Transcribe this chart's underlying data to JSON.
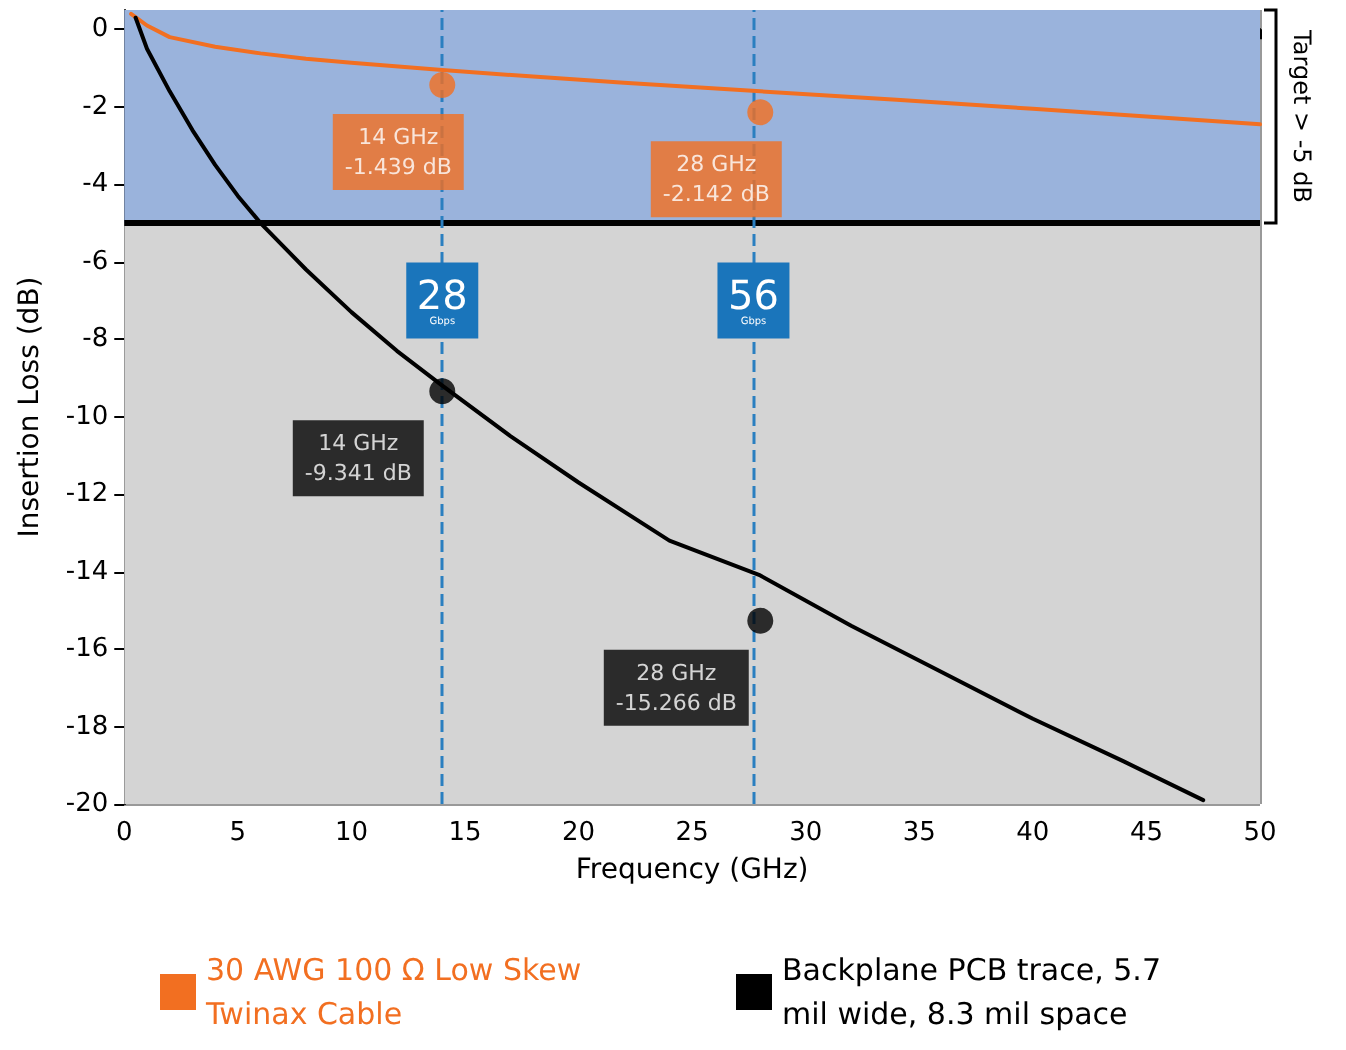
{
  "chart_data": {
    "type": "line",
    "xlabel": "Frequency (GHz)",
    "ylabel": "Insertion Loss (dB)",
    "xlim": [
      0,
      50
    ],
    "xticks": [
      0,
      5,
      10,
      15,
      20,
      25,
      30,
      35,
      40,
      45,
      50
    ],
    "ylim": [
      -20,
      0.5
    ],
    "yticks": [
      -20,
      -18,
      -16,
      -14,
      -12,
      -10,
      -8,
      -6,
      -4,
      -2,
      0
    ],
    "grid": true,
    "legend": "bottom",
    "marker": "none",
    "line_style": "solid",
    "series": [
      {
        "name": "30 AWG 100 Ω Low Skew Twinax Cable",
        "color": "#f26f21",
        "x": [
          0.3,
          1,
          2,
          4,
          6,
          8,
          10,
          14,
          18,
          22,
          28,
          34,
          40,
          45,
          50
        ],
        "values": [
          0.4,
          0.1,
          -0.2,
          -0.45,
          -0.62,
          -0.76,
          -0.86,
          -1.05,
          -1.22,
          -1.38,
          -1.6,
          -1.82,
          -2.05,
          -2.25,
          -2.45
        ]
      },
      {
        "name": "Backplane PCB trace, 5.7 mil wide, 8.3 mil space",
        "color": "#000000",
        "x": [
          0.5,
          1,
          2,
          3,
          4,
          5,
          6,
          8,
          10,
          12,
          14,
          17,
          20,
          24,
          28,
          32,
          36,
          40,
          44,
          47.5
        ],
        "values": [
          0.3,
          -0.5,
          -1.6,
          -2.6,
          -3.5,
          -4.3,
          -5.0,
          -6.2,
          -7.3,
          -8.3,
          -9.2,
          -10.5,
          -11.7,
          -13.2,
          -14.1,
          -15.4,
          -16.6,
          -17.8,
          -18.9,
          -19.9
        ]
      },
      {
        "type": "scatter",
        "marker": "circle",
        "color": "#f26f21",
        "x": [
          14,
          28
        ],
        "values": [
          -1.439,
          -2.142
        ],
        "value_labels": [
          "14 GHz\n-1.439 dB",
          "28 GHz\n-2.142 dB"
        ]
      },
      {
        "type": "scatter",
        "marker": "circle",
        "color": "#000000",
        "x": [
          14,
          28
        ],
        "values": [
          -9.341,
          -15.266
        ],
        "value_labels": [
          "14 GHz\n-9.341 dB",
          "28 GHz\n-15.266 dB"
        ]
      }
    ],
    "bands": [
      {
        "axis": "y",
        "from": -5,
        "to": 0.5,
        "color": "#9ab3dc",
        "label": "Target > -5 dB"
      },
      {
        "axis": "y",
        "from": -20,
        "to": -5,
        "color": "#d4d4d4"
      }
    ],
    "ref_lines": [
      {
        "axis": "y",
        "value": -5,
        "color": "#000000",
        "line_style": "solid"
      },
      {
        "axis": "x",
        "value": 14,
        "color": "#2a7fc0",
        "line_style": "dashed",
        "label": "28 Gbps"
      },
      {
        "axis": "x",
        "value": 27.7,
        "color": "#2a7fc0",
        "line_style": "dashed",
        "label": "56 Gbps"
      }
    ]
  }
}
